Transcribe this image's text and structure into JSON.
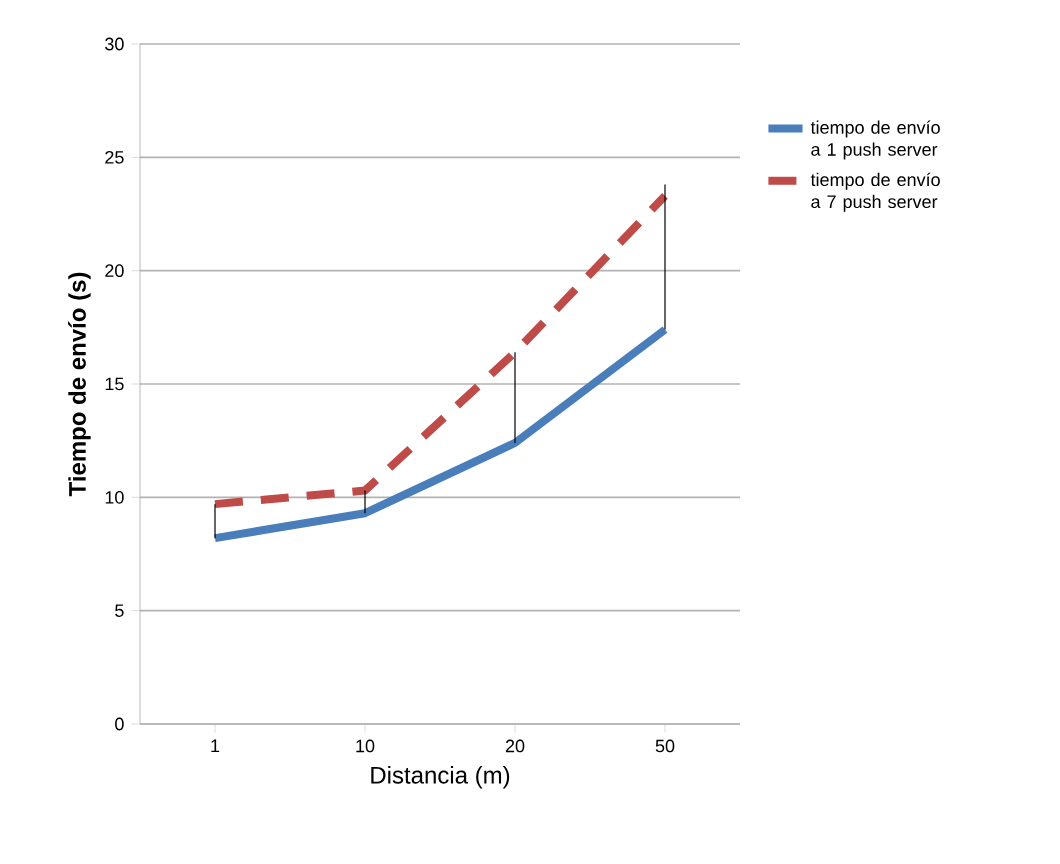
{
  "chart_data": {
    "type": "line",
    "xlabel": "Distancia (m)",
    "ylabel": "Tiempo de envío (s)",
    "categories": [
      "1",
      "10",
      "20",
      "50"
    ],
    "series": [
      {
        "name": "tiempo de envío a 1 push server",
        "color": "#4a7ebb",
        "values": [
          8.2,
          9.3,
          12.4,
          17.4
        ],
        "line_style": "solid",
        "errors": [
          [
            8.2,
            9.7
          ],
          [
            9.3,
            10.3
          ],
          [
            12.4,
            16.4
          ],
          [
            17.4,
            23.8
          ]
        ]
      },
      {
        "name": "tiempo de envío a 7 push server",
        "color": "#be4b48",
        "values": [
          9.7,
          10.3,
          16.4,
          23.3
        ],
        "line_style": "dashed"
      }
    ],
    "ylim": [
      0,
      30
    ],
    "yticks": [
      0,
      5,
      10,
      15,
      20,
      25,
      30
    ],
    "grid": "y",
    "legend": "right",
    "marker": "none"
  }
}
